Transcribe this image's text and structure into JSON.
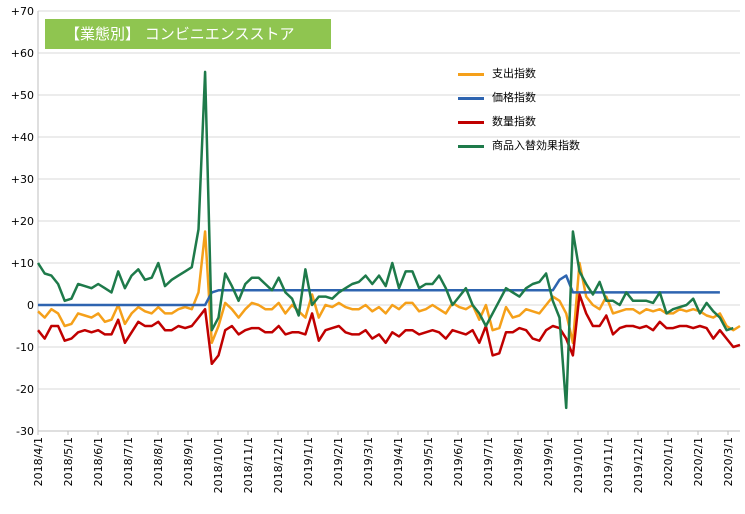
{
  "chart_data": {
    "type": "line",
    "title": "【業態別】 コンビニエンスストア",
    "xlabel": "",
    "ylabel": "",
    "ylim": [
      -30,
      70
    ],
    "y_ticks": [
      {
        "value": 70,
        "label": "+70"
      },
      {
        "value": 60,
        "label": "+60"
      },
      {
        "value": 50,
        "label": "+50"
      },
      {
        "value": 40,
        "label": "+40"
      },
      {
        "value": 30,
        "label": "+30"
      },
      {
        "value": 20,
        "label": "+20"
      },
      {
        "value": 10,
        "label": "+10"
      },
      {
        "value": 0,
        "label": "0"
      },
      {
        "value": -10,
        "label": "-10"
      },
      {
        "value": -20,
        "label": "-20"
      },
      {
        "value": -30,
        "label": "-30"
      }
    ],
    "x_tick_labels": [
      "2018/4/1",
      "2018/5/1",
      "2018/6/1",
      "2018/7/1",
      "2018/8/1",
      "2018/9/1",
      "2018/10/1",
      "2018/11/1",
      "2018/12/1",
      "2019/1/1",
      "2019/2/1",
      "2019/3/1",
      "2019/4/1",
      "2019/5/1",
      "2019/6/1",
      "2019/7/1",
      "2019/8/1",
      "2019/9/1",
      "2019/10/1",
      "2019/11/1",
      "2019/12/1",
      "2020/1/1",
      "2020/2/1",
      "2020/3/1"
    ],
    "grid": true,
    "legend_position": "top-right",
    "series": [
      {
        "name": "支出指数",
        "color": "#f5a01a",
        "values": [
          -1.5,
          -3,
          -1,
          -2,
          -5,
          -4.5,
          -2,
          -2.5,
          -3,
          -2,
          -4,
          -3.5,
          0,
          -4.5,
          -2,
          -0.5,
          -1.5,
          -2,
          -0.5,
          -2,
          -2,
          -1,
          -0.5,
          -1,
          3,
          17.5,
          -9,
          -5,
          0.5,
          -1,
          -3,
          -1,
          0.5,
          0,
          -1,
          -1,
          0.5,
          -2,
          0,
          -1.5,
          -3,
          2.5,
          -3,
          0,
          -0.5,
          0.5,
          -0.5,
          -1,
          -1,
          0,
          -1.5,
          -0.5,
          -2,
          0,
          -1,
          0.5,
          0.5,
          -1.5,
          -1,
          0,
          -1,
          -2,
          0.5,
          -0.5,
          -1,
          0,
          -3.5,
          0,
          -6,
          -5.5,
          -0.5,
          -3,
          -2.5,
          -1,
          -1.5,
          -2,
          0,
          2,
          1,
          -2,
          -9,
          10,
          2,
          0,
          -1,
          2,
          -2,
          -1.5,
          -1,
          -1,
          -2,
          -1,
          -1.5,
          -1,
          -2,
          -2,
          -1,
          -1.5,
          -1,
          -1.5,
          -2.5,
          -3,
          -2,
          -5,
          -6,
          -5
        ]
      },
      {
        "name": "価格指数",
        "color": "#2e64b0",
        "values": [
          0,
          0,
          0,
          0,
          0,
          0,
          0,
          0,
          0,
          0,
          0,
          0,
          0,
          0,
          0,
          0,
          0,
          0,
          0,
          0,
          0,
          0,
          0,
          0,
          0,
          0,
          3,
          3.5,
          3.5,
          3.5,
          3.5,
          3.5,
          3.5,
          3.5,
          3.5,
          3.5,
          3.5,
          3.5,
          3.5,
          3.5,
          3.5,
          3.5,
          3.5,
          3.5,
          3.5,
          3.5,
          3.5,
          3.5,
          3.5,
          3.5,
          3.5,
          3.5,
          3.5,
          3.5,
          3.5,
          3.5,
          3.5,
          3.5,
          3.5,
          3.5,
          3.5,
          3.5,
          3.5,
          3.5,
          3.5,
          3.5,
          3.5,
          3.5,
          3.5,
          3.5,
          3.5,
          3.5,
          3.5,
          3.5,
          3.5,
          3.5,
          3.5,
          3.5,
          6,
          7,
          3,
          3,
          3,
          3,
          3,
          3,
          3,
          3,
          3,
          3,
          3,
          3,
          3,
          3,
          3,
          3,
          3,
          3,
          3,
          3,
          3,
          3,
          3
        ]
      },
      {
        "name": "数量指数",
        "color": "#c00000",
        "values": [
          -6,
          -8,
          -5,
          -5,
          -8.5,
          -8,
          -6.5,
          -6,
          -6.5,
          -6,
          -7,
          -7,
          -3.5,
          -9,
          -6.5,
          -4,
          -5,
          -5,
          -4,
          -6,
          -6,
          -5,
          -5.5,
          -5,
          -3,
          -1,
          -14,
          -12,
          -6,
          -5,
          -7,
          -6,
          -5.5,
          -5.5,
          -6.5,
          -6.5,
          -5,
          -7,
          -6.5,
          -6.5,
          -7,
          -2,
          -8.5,
          -6,
          -5.5,
          -5,
          -6.5,
          -7,
          -7,
          -6,
          -8,
          -7,
          -9,
          -6.5,
          -7.5,
          -6,
          -6,
          -7,
          -6.5,
          -6,
          -6.5,
          -8,
          -6,
          -6.5,
          -7,
          -6,
          -9,
          -5,
          -12,
          -11.5,
          -6.5,
          -6.5,
          -5.5,
          -6,
          -8,
          -8.5,
          -6,
          -5,
          -5.5,
          -8,
          -12,
          2.5,
          -2,
          -5,
          -5,
          -2.5,
          -7,
          -5.5,
          -5,
          -5,
          -5.5,
          -5,
          -6,
          -4,
          -5.5,
          -5.5,
          -5,
          -5,
          -5.5,
          -5,
          -5.5,
          -8,
          -6,
          -8,
          -10,
          -9.5
        ]
      },
      {
        "name": "商品入替効果指数",
        "color": "#1e7a4a",
        "values": [
          10,
          7.5,
          7,
          5,
          1,
          1.5,
          5,
          4.5,
          4,
          5,
          4,
          3,
          8,
          4,
          7,
          8.5,
          6,
          6.5,
          10,
          4.5,
          6,
          7,
          8,
          9,
          18,
          55.5,
          -6,
          -3,
          7.5,
          4.5,
          1,
          5,
          6.5,
          6.5,
          5,
          3.5,
          6.5,
          3,
          1.5,
          -2.5,
          8.5,
          0,
          2,
          2,
          1.5,
          3,
          4,
          5,
          5.5,
          7,
          5,
          7,
          4.5,
          10,
          4,
          8,
          8,
          4,
          5,
          5,
          7,
          4,
          0,
          2,
          4,
          0,
          -2,
          -5,
          -2,
          1,
          4,
          3,
          2,
          4,
          5,
          5.5,
          7.5,
          1,
          -3,
          -24.5,
          17.5,
          8,
          5,
          2.5,
          5.5,
          1,
          1,
          0,
          3,
          1,
          1,
          1,
          0.5,
          3,
          -2,
          -1,
          -0.5,
          0,
          1.5,
          -2,
          0.5,
          -1.5,
          -3,
          -6,
          -5.5
        ]
      }
    ]
  }
}
